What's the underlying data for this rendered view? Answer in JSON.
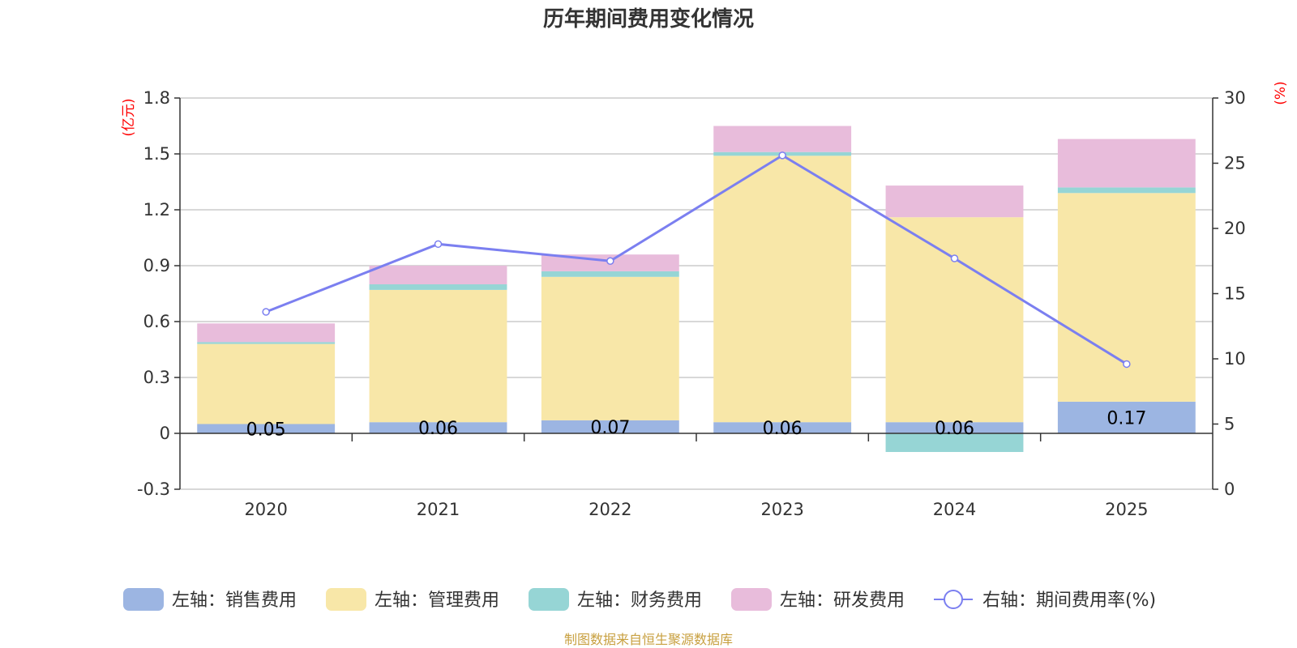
{
  "chart_data": {
    "type": "bar",
    "stacked": true,
    "title": "历年期间费用变化情况",
    "categories": [
      "2020",
      "2021",
      "2022",
      "2023",
      "2024",
      "2025"
    ],
    "left_axis": {
      "unit": "(亿元)",
      "range": [
        -0.3,
        1.8
      ],
      "ticks": [
        "-0.3",
        "0",
        "0.3",
        "0.6",
        "0.9",
        "1.2",
        "1.5",
        "1.8"
      ]
    },
    "right_axis": {
      "unit": "(%)",
      "range": [
        0,
        30
      ],
      "ticks": [
        "0",
        "5",
        "10",
        "15",
        "20",
        "25",
        "30"
      ]
    },
    "series": [
      {
        "name": "左轴：销售费用",
        "axis": "left",
        "color": "#9cb5e2",
        "values": [
          0.05,
          0.06,
          0.07,
          0.06,
          0.06,
          0.17
        ],
        "labels": [
          "0.05",
          "0.06",
          "0.07",
          "0.06",
          "0.06",
          "0.17"
        ]
      },
      {
        "name": "左轴：管理费用",
        "axis": "left",
        "color": "#f8e7a8",
        "values": [
          0.43,
          0.71,
          0.77,
          1.43,
          1.1,
          1.12
        ]
      },
      {
        "name": "左轴：财务费用",
        "axis": "left",
        "color": "#96d5d5",
        "values": [
          0.01,
          0.03,
          0.03,
          0.02,
          -0.1,
          0.03
        ]
      },
      {
        "name": "左轴：研发费用",
        "axis": "left",
        "color": "#e8bcdb",
        "values": [
          0.1,
          0.1,
          0.09,
          0.14,
          0.17,
          0.26
        ]
      },
      {
        "name": "右轴：期间费用率(%)",
        "axis": "right",
        "type": "line",
        "color": "#7b7ff0",
        "values": [
          13.6,
          18.8,
          17.5,
          25.6,
          17.7,
          9.6
        ]
      }
    ],
    "legend_position": "bottom"
  },
  "source_note": "制图数据来自恒生聚源数据库"
}
